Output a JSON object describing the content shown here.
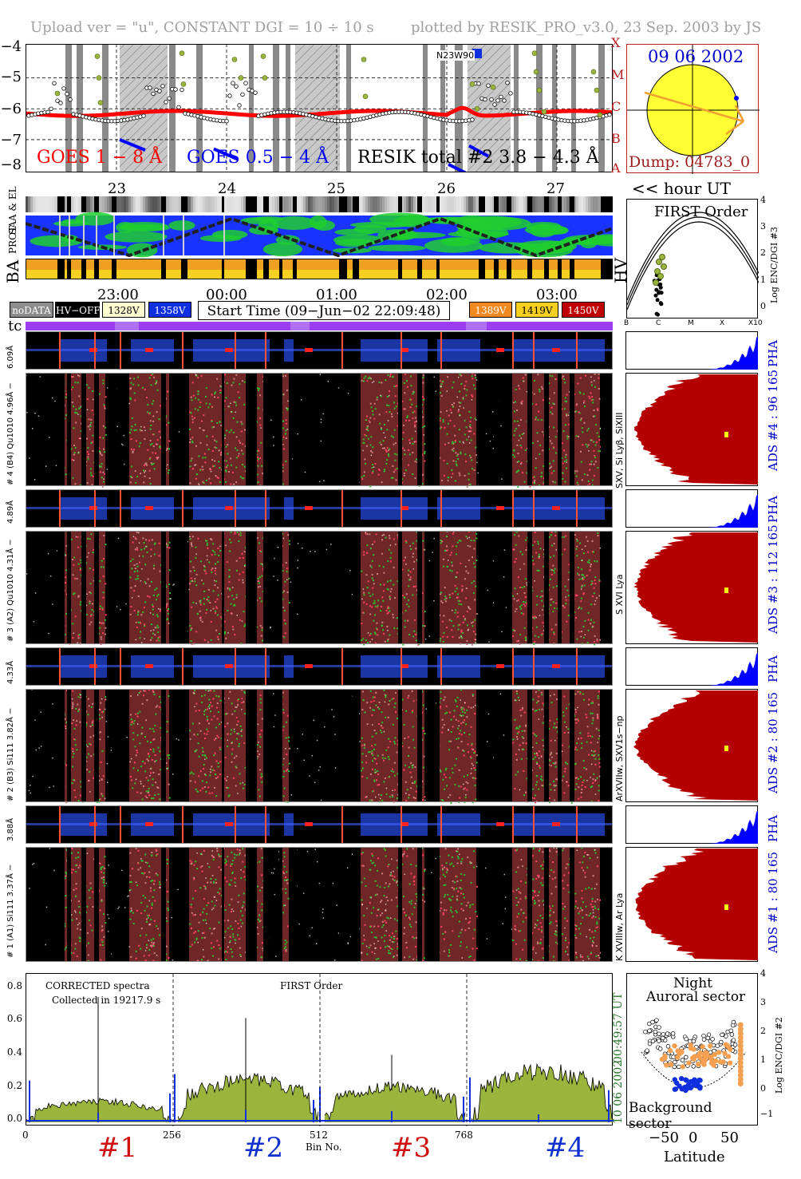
{
  "header": {
    "left": "Upload ver = \"u\", CONSTANT  DGI =  10 ÷  10 s",
    "right": "plotted by RESIK_PRO_v3.0, 23 Sep. 2003 by JS"
  },
  "goes": {
    "yticks": [
      "−4",
      "−5",
      "−6",
      "−7",
      "−8"
    ],
    "xticks": [
      "23",
      "24",
      "25",
      "26",
      "27"
    ],
    "class_letters": [
      "X",
      "M",
      "C",
      "B",
      "A"
    ],
    "legend_goes1": "GOES 1 − 8 Å",
    "legend_goes05": "GOES 0.5 − 4 Å",
    "legend_resik": "RESIK total #2  3.8 − 4.3 Å",
    "marker_label": "N23W90",
    "hour_label": "<< hour UT"
  },
  "sun_panel": {
    "date": "09 06 2002",
    "dump": "Dump: 04783_0"
  },
  "track_labels": {
    "saa": "SAA & EL",
    "prot": "PROT",
    "ba": "BA",
    "hv": "HV",
    "tc": "tc"
  },
  "time_axis": [
    "23:00",
    "00:00",
    "01:00",
    "02:00",
    "03:00"
  ],
  "legend_badges": {
    "nodata": "noDATA",
    "hvoff": "HV−OFF",
    "v1328": "1328V",
    "v1358": "1358V",
    "start_time": "Start Time (09−Jun−02 22:09:48)",
    "v1389": "1389V",
    "v1419": "1419V",
    "v1450": "1450V"
  },
  "first_order_panel": {
    "title": "FIRST Order",
    "ylabel": "Log ENC/DGI #3",
    "yticks": [
      "4",
      "3",
      "2",
      "1",
      "0"
    ],
    "xticks": [
      "B",
      "C",
      "M",
      "X",
      "X10"
    ]
  },
  "channels": [
    {
      "pha_label": "6.09Å",
      "main_label": "# 4 (B4)  Qu1010  4.96Å −",
      "line_ids": "SXV, Si Lyβ, SiXIII",
      "ads": "ADS #4 :   96 165"
    },
    {
      "pha_label": "4.89Å",
      "main_label": "# 3 (A2)  Qu1010  4.31Å −",
      "line_ids": "S XVI Lya",
      "ads": "ADS #3 :  112 165"
    },
    {
      "pha_label": "4.33Å",
      "main_label": "# 2 (B3)  Si111  3.82Å −",
      "line_ids": "ArXVIIw, SXV1s−np",
      "ads": "ADS #2 :   80 165"
    },
    {
      "pha_label": "3.88Å",
      "main_label": "# 1 (A1)  Si111  3.37Å −",
      "line_ids": "K XVIIIw, Ar Lya",
      "ads": "ADS #1 :   80 165"
    }
  ],
  "pha": "PHA",
  "spectrum": {
    "note1": "CORRECTED spectra",
    "note2": "Collected in 19217.9 s",
    "title": "FIRST Order",
    "xlabel": "Bin No.",
    "xticks": [
      "0",
      "256",
      "512",
      "768"
    ],
    "yticks": [
      "0.8",
      "0.6",
      "0.4",
      "0.2",
      "0.0"
    ],
    "right_time": "00:49:57 UT",
    "right_date": "10 06 2002",
    "sections": [
      "#1",
      "#2",
      "#3",
      "#4"
    ]
  },
  "latitude_panel": {
    "night": "Night",
    "auroral": "Auroral sector",
    "background": "Background sector",
    "xlabel": "Latitude",
    "xticks": [
      "−50",
      "0",
      "50"
    ],
    "ylabel": "Log ENC/DGI #2",
    "yticks": [
      "4",
      "3",
      "2",
      "1",
      "0",
      "−1"
    ]
  },
  "colors": {
    "goes1": "#ff0000",
    "goes05": "#0000ff",
    "hatch": "#c0c0c0",
    "olive": "#9ab43c",
    "sun": "#ffff33",
    "pha_blue": "#0000ff",
    "ads_red": "#b40000",
    "purple": "#9b3ef0",
    "orange": "#f0a030",
    "yellow": "#f5d020"
  },
  "chart_data": [
    {
      "type": "line",
      "title": "",
      "xlabel": "",
      "ylabel": "",
      "x_ticks": [
        "23",
        "24",
        "25",
        "26",
        "27"
      ],
      "ylim": [
        -8,
        -4
      ],
      "series": [
        {
          "name": "GOES 1 − 8 Å",
          "values": [
            -6.2,
            -6.2,
            -6.2,
            -6.2,
            -6.2
          ]
        },
        {
          "name": "GOES 0.5 − 4 Å",
          "values": [
            -8.1,
            -7.0,
            -8.1,
            -7.2,
            -8.0
          ]
        }
      ]
    },
    {
      "type": "line",
      "title": "FIRST Order",
      "xlabel": "Bin No.",
      "ylabel": "",
      "x_ticks": [
        0,
        256,
        512,
        768
      ],
      "ylim": [
        0,
        0.9
      ],
      "series": [
        {
          "name": "#1",
          "values": [
            0.1,
            0.13,
            0.14,
            0.13,
            0.1
          ]
        },
        {
          "name": "#2",
          "values": [
            0.2,
            0.28,
            0.3,
            0.26,
            0.18
          ]
        },
        {
          "name": "#3",
          "values": [
            0.15,
            0.22,
            0.26,
            0.24,
            0.16
          ]
        },
        {
          "name": "#4",
          "values": [
            0.28,
            0.38,
            0.4,
            0.34,
            0.2
          ]
        }
      ]
    }
  ]
}
